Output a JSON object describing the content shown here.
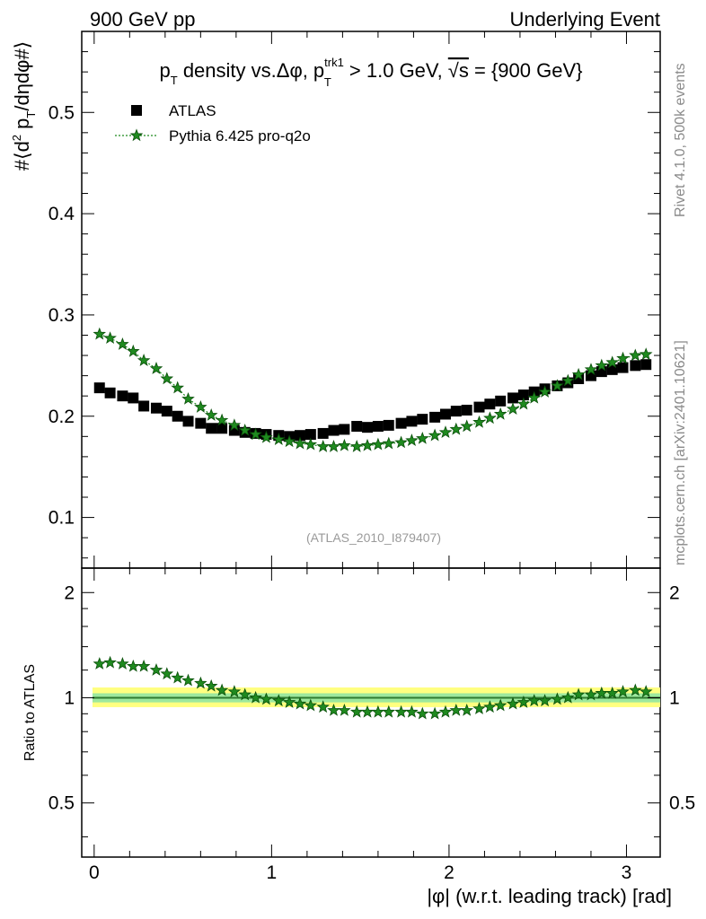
{
  "header": {
    "left": "900 GeV pp",
    "right": "Underlying Event"
  },
  "side_labels": {
    "rivet": "Rivet 4.1.0,  500k events",
    "mcplots": "mcplots.cern.ch [arXiv:2401.10621]"
  },
  "colors": {
    "data": "#000000",
    "mc": "#1f8a1f",
    "band_outer": "#ffff80",
    "band_inner": "#9de89d",
    "ref_line": "#2f7a2f"
  },
  "chart_data": [
    {
      "type": "scatter",
      "panel": "main",
      "title": "p_T density vs.Δφ, p_T^trk1 > 1.0 GeV, √s = {900 GeV}",
      "title_parts": {
        "a": "p",
        "a_sub": "T",
        "b": " density vs.Δφ, p",
        "b_sup": "trk1",
        "b_sub": "T",
        "c": " > 1.0 GeV, ",
        "d": "√s",
        "e": " = {900 GeV}"
      },
      "ylabel": "#⟨d² p_T/dηdφ#⟩",
      "ylabel_parts": {
        "a": "#⟨d",
        "a_sup": "2",
        "b": " p",
        "b_sub": "T",
        "c": "/dηdφ#⟩"
      },
      "watermark": "(ATLAS_2010_I879407)",
      "xlim": [
        -0.07,
        3.19
      ],
      "ylim": [
        0.05,
        0.58
      ],
      "yticks": [
        0.1,
        0.2,
        0.3,
        0.4,
        0.5
      ],
      "ytick_labels": [
        "0.1",
        "0.2",
        "0.3",
        "0.4",
        "0.5"
      ],
      "legend": [
        "ATLAS",
        "Pythia 6.425 pro-q2o"
      ],
      "legend_position": "top-left",
      "x": [
        0.03,
        0.09,
        0.16,
        0.22,
        0.28,
        0.35,
        0.41,
        0.47,
        0.53,
        0.6,
        0.66,
        0.72,
        0.79,
        0.85,
        0.91,
        0.97,
        1.04,
        1.1,
        1.16,
        1.22,
        1.29,
        1.35,
        1.41,
        1.48,
        1.54,
        1.6,
        1.66,
        1.73,
        1.79,
        1.85,
        1.92,
        1.98,
        2.04,
        2.1,
        2.17,
        2.23,
        2.29,
        2.36,
        2.42,
        2.48,
        2.54,
        2.61,
        2.67,
        2.73,
        2.8,
        2.86,
        2.92,
        2.98,
        3.05,
        3.11
      ],
      "series": [
        {
          "name": "ATLAS",
          "marker": "square",
          "values": [
            0.228,
            0.223,
            0.22,
            0.218,
            0.21,
            0.208,
            0.205,
            0.2,
            0.195,
            0.193,
            0.188,
            0.188,
            0.186,
            0.184,
            0.183,
            0.182,
            0.181,
            0.18,
            0.181,
            0.182,
            0.183,
            0.186,
            0.187,
            0.19,
            0.189,
            0.19,
            0.191,
            0.193,
            0.195,
            0.197,
            0.199,
            0.202,
            0.205,
            0.206,
            0.209,
            0.212,
            0.215,
            0.218,
            0.221,
            0.224,
            0.227,
            0.23,
            0.233,
            0.237,
            0.24,
            0.244,
            0.246,
            0.248,
            0.25,
            0.251
          ]
        },
        {
          "name": "Pythia 6.425 pro-q2o",
          "marker": "star",
          "values": [
            0.281,
            0.277,
            0.271,
            0.264,
            0.255,
            0.247,
            0.237,
            0.228,
            0.217,
            0.209,
            0.201,
            0.196,
            0.191,
            0.186,
            0.182,
            0.179,
            0.177,
            0.175,
            0.173,
            0.172,
            0.17,
            0.17,
            0.171,
            0.17,
            0.171,
            0.172,
            0.173,
            0.174,
            0.176,
            0.178,
            0.181,
            0.184,
            0.187,
            0.19,
            0.194,
            0.198,
            0.202,
            0.207,
            0.212,
            0.218,
            0.224,
            0.23,
            0.235,
            0.241,
            0.246,
            0.25,
            0.253,
            0.257,
            0.26,
            0.261
          ]
        }
      ]
    },
    {
      "type": "scatter",
      "panel": "ratio",
      "ylabel": "Ratio to ATLAS",
      "xlabel": "|φ| (w.r.t. leading track) [rad]",
      "xlim": [
        -0.07,
        3.19
      ],
      "ylim": [
        0.35,
        2.35
      ],
      "scale": "log",
      "xticks": [
        0,
        1,
        2,
        3
      ],
      "xtick_labels": [
        "0",
        "1",
        "2",
        "3"
      ],
      "yticks": [
        0.5,
        1,
        2
      ],
      "ytick_labels": [
        "0.5",
        "1",
        "2"
      ],
      "band": {
        "outer": [
          0.94,
          1.07
        ],
        "inner": [
          0.97,
          1.03
        ]
      },
      "series": [
        {
          "name": "Pythia 6.425 pro-q2o",
          "marker": "star",
          "values": [
            1.25,
            1.26,
            1.25,
            1.23,
            1.23,
            1.2,
            1.17,
            1.14,
            1.12,
            1.1,
            1.08,
            1.05,
            1.04,
            1.02,
            1.0,
            0.99,
            0.98,
            0.97,
            0.96,
            0.95,
            0.94,
            0.92,
            0.92,
            0.91,
            0.91,
            0.91,
            0.91,
            0.91,
            0.91,
            0.9,
            0.9,
            0.91,
            0.92,
            0.92,
            0.93,
            0.94,
            0.95,
            0.96,
            0.97,
            0.98,
            0.98,
            0.99,
            1.0,
            1.02,
            1.02,
            1.03,
            1.03,
            1.04,
            1.05,
            1.04
          ]
        }
      ]
    }
  ]
}
